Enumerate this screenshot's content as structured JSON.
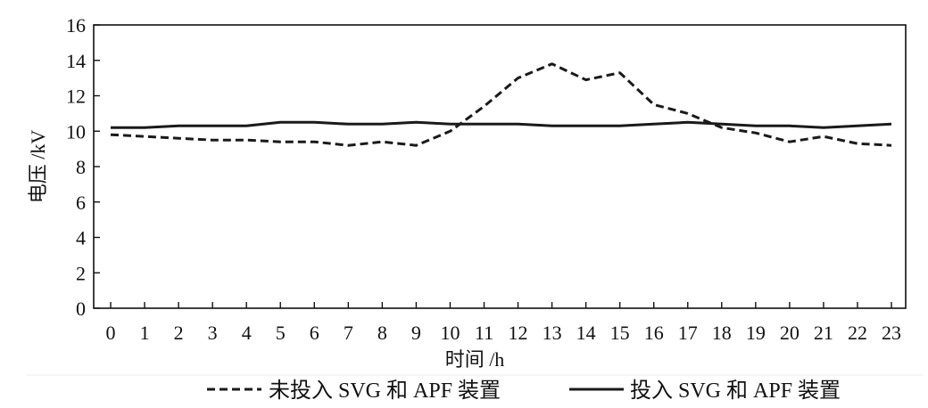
{
  "chart_data": {
    "type": "line",
    "xlabel": "时间 /h",
    "ylabel": "电压 /kV",
    "x": [
      0,
      1,
      2,
      3,
      4,
      5,
      6,
      7,
      8,
      9,
      10,
      11,
      12,
      13,
      14,
      15,
      16,
      17,
      18,
      19,
      20,
      21,
      22,
      23
    ],
    "xlim": [
      -0.5,
      23.42
    ],
    "ylim": [
      0,
      16
    ],
    "yticks": [
      0,
      2,
      4,
      6,
      8,
      10,
      12,
      14,
      16
    ],
    "grid": false,
    "legend": "bottom",
    "series": [
      {
        "name": "未投入 SVG 和 APF 装置",
        "dashed": true,
        "color": "#1a1a1a",
        "values": [
          9.8,
          9.7,
          9.6,
          9.5,
          9.5,
          9.4,
          9.4,
          9.2,
          9.4,
          9.2,
          10.0,
          11.4,
          13.0,
          13.8,
          12.9,
          13.3,
          11.5,
          11.0,
          10.2,
          9.9,
          9.4,
          9.7,
          9.3,
          9.2
        ]
      },
      {
        "name": "投入 SVG 和 APF 装置",
        "dashed": false,
        "color": "#1a1a1a",
        "values": [
          10.2,
          10.2,
          10.3,
          10.3,
          10.3,
          10.5,
          10.5,
          10.4,
          10.4,
          10.5,
          10.4,
          10.4,
          10.4,
          10.3,
          10.3,
          10.3,
          10.4,
          10.5,
          10.4,
          10.3,
          10.3,
          10.2,
          10.3,
          10.4
        ]
      }
    ]
  }
}
